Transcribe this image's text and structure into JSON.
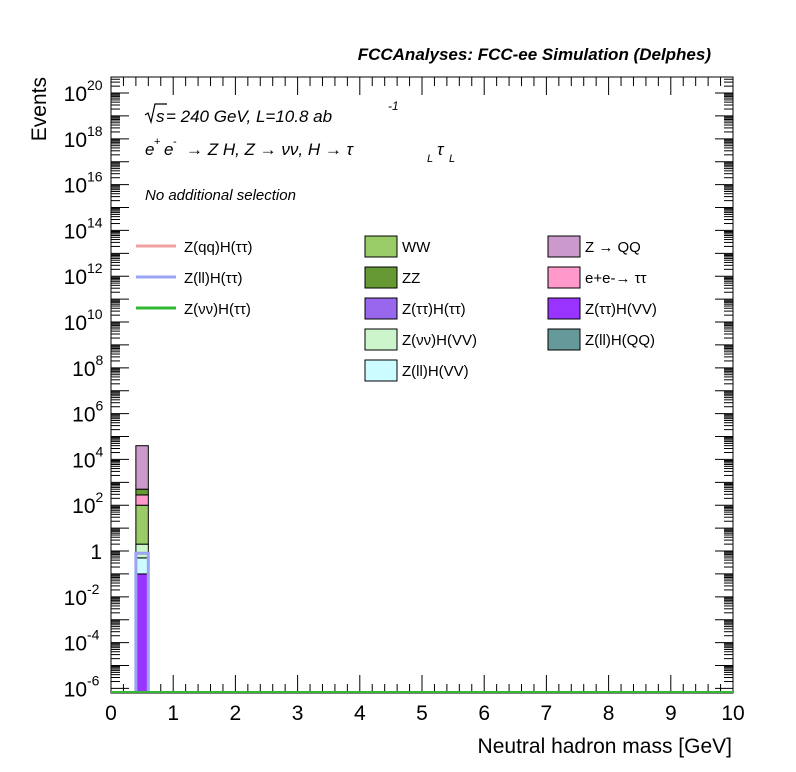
{
  "header": {
    "title": "FCCAnalyses: FCC-ee Simulation (Delphes)"
  },
  "annotations": {
    "energy_prefix": "s",
    "energy_text": " = 240 GeV, L=10.8 ab",
    "lumi_exponent": "-1",
    "process_prefix": "e",
    "process_text": "→ Z H, Z → νν, H → τ",
    "tau_sub1": "L",
    "tau2": "τ",
    "tau_sub2": "L",
    "selection": "No additional selection"
  },
  "legend_col1": [
    {
      "label": "Z(qq)H(ττ)",
      "color": "#f0a0a0",
      "kind": "line"
    },
    {
      "label": "Z(ll)H(ττ)",
      "color": "#9aa4f2",
      "kind": "line"
    },
    {
      "label": "Z(νν)H(ττ)",
      "color": "#33b833",
      "kind": "line"
    }
  ],
  "legend_col2": [
    {
      "label": "WW",
      "color": "#99cc66",
      "kind": "box"
    },
    {
      "label": "ZZ",
      "color": "#669933",
      "kind": "box"
    },
    {
      "label": "Z(ττ)H(ττ)",
      "color": "#9966ee",
      "kind": "box"
    },
    {
      "label": "Z(νν)H(VV)",
      "color": "#ccf5cc",
      "kind": "box"
    },
    {
      "label": "Z(ll)H(VV)",
      "color": "#ccfcff",
      "kind": "box"
    }
  ],
  "legend_col3": [
    {
      "label": "Z → QQ",
      "color": "#cc99cc",
      "kind": "box"
    },
    {
      "label": "e+e-→ ττ",
      "color": "#ff99cc",
      "kind": "box"
    },
    {
      "label": "Z(ττ)H(VV)",
      "color": "#9933ff",
      "kind": "box"
    },
    {
      "label": "Z(ll)H(QQ)",
      "color": "#669999",
      "kind": "box"
    }
  ],
  "chart_data": {
    "type": "bar",
    "title": "FCCAnalyses: FCC-ee Simulation (Delphes)",
    "xlabel": "Neutral hadron mass [GeV]",
    "ylabel": "Events",
    "xlim": [
      0,
      10
    ],
    "ylim_log10": [
      -6.2,
      20.7
    ],
    "y_scale": "log",
    "x_ticks": [
      "0",
      "1",
      "2",
      "3",
      "4",
      "5",
      "6",
      "7",
      "8",
      "9",
      "10"
    ],
    "y_ticks": [
      {
        "base": "10",
        "exp": "20",
        "log": 20
      },
      {
        "base": "10",
        "exp": "18",
        "log": 18
      },
      {
        "base": "10",
        "exp": "16",
        "log": 16
      },
      {
        "base": "10",
        "exp": "14",
        "log": 14
      },
      {
        "base": "10",
        "exp": "12",
        "log": 12
      },
      {
        "base": "10",
        "exp": "10",
        "log": 10
      },
      {
        "base": "10",
        "exp": "8",
        "log": 8
      },
      {
        "base": "10",
        "exp": "6",
        "log": 6
      },
      {
        "base": "10",
        "exp": "4",
        "log": 4
      },
      {
        "base": "10",
        "exp": "2",
        "log": 2
      },
      {
        "base": "1",
        "exp": "",
        "log": 0
      },
      {
        "base": "10",
        "exp": "-2",
        "log": -2
      },
      {
        "base": "10",
        "exp": "-4",
        "log": -4
      },
      {
        "base": "10",
        "exp": "-6",
        "log": -6
      }
    ],
    "bin": {
      "x_low": 0.4,
      "x_high": 0.6
    },
    "stack_segments": [
      {
        "name": "Z(ττ)H(VV)",
        "color": "#9933ff",
        "log_low": -6.2,
        "log_high": -1.0
      },
      {
        "name": "Z(ll)H(VV)",
        "color": "#ccfcff",
        "log_low": -1.0,
        "log_high": -0.3
      },
      {
        "name": "Z(νν)H(VV)",
        "color": "#ccf5cc",
        "log_low": -0.3,
        "log_high": 0.3
      },
      {
        "name": "WW",
        "color": "#99cc66",
        "log_low": 0.3,
        "log_high": 2.0
      },
      {
        "name": "e+e-→ ττ",
        "color": "#ff99cc",
        "log_low": 2.0,
        "log_high": 2.45
      },
      {
        "name": "ZZ",
        "color": "#669933",
        "log_low": 2.45,
        "log_high": 2.7
      },
      {
        "name": "Z → QQ",
        "color": "#cc99cc",
        "log_low": 2.7,
        "log_high": 4.6
      }
    ],
    "signal_lines": [
      {
        "name": "Z(ll)H(ττ)",
        "color": "#9aa4f2",
        "log_value": -0.1
      },
      {
        "name": "Z(νν)H(ττ)",
        "color": "#33b833",
        "log_value": -6.2
      }
    ]
  }
}
